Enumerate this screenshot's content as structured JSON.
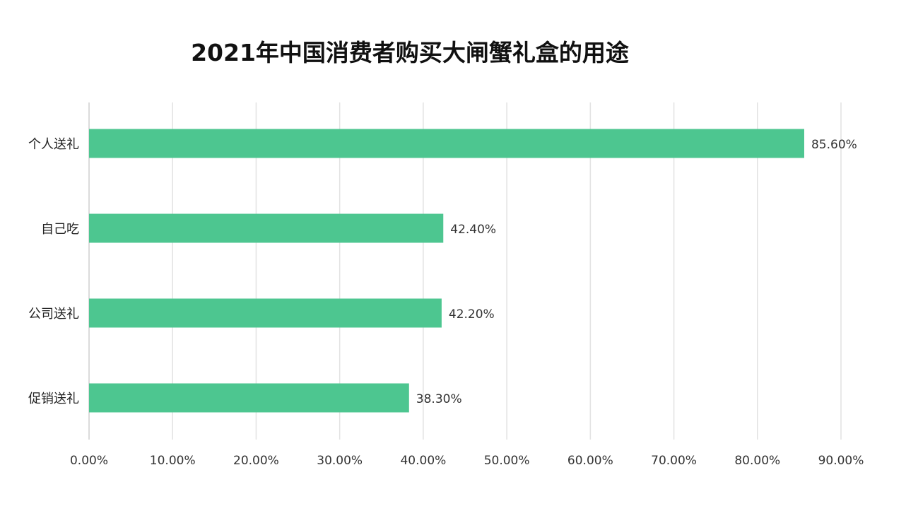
{
  "chart_data": {
    "type": "bar",
    "orientation": "horizontal",
    "title": "2021年中国消费者购买大闸蟹礼盒的用途",
    "categories": [
      "个人送礼",
      "自己吃",
      "公司送礼",
      "促销送礼"
    ],
    "values": [
      85.6,
      42.4,
      42.2,
      38.3
    ],
    "data_labels": [
      "85.60%",
      "42.40%",
      "42.20%",
      "38.30%"
    ],
    "xlim": [
      0,
      90
    ],
    "x_ticks": [
      "0.00%",
      "10.00%",
      "20.00%",
      "30.00%",
      "40.00%",
      "50.00%",
      "60.00%",
      "70.00%",
      "80.00%",
      "90.00%"
    ],
    "grid": "vertical",
    "bar_color": "#4dc690",
    "xlabel": "",
    "ylabel": ""
  }
}
